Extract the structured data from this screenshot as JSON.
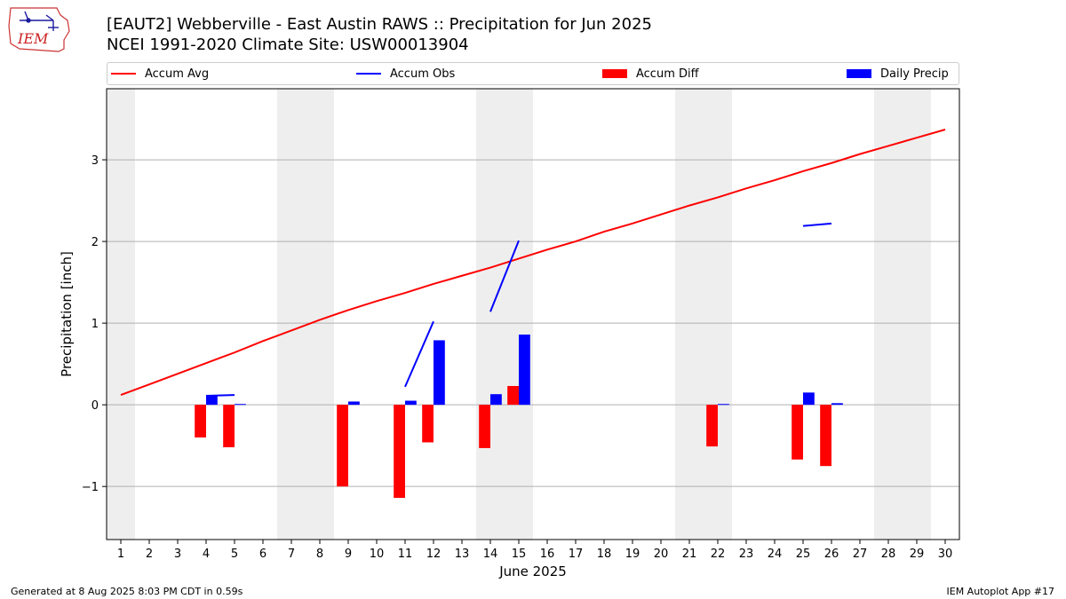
{
  "header": {
    "title_line1": "[EAUT2] Webberville - East Austin RAWS :: Precipitation for Jun 2025",
    "title_line2": "NCEI 1991-2020 Climate Site: USW00013904"
  },
  "logo": {
    "text": "IEM",
    "icon": "iowa-state-logo-icon"
  },
  "legend": [
    {
      "label": "Accum Avg",
      "kind": "line",
      "color": "#ff0000"
    },
    {
      "label": "Accum Obs",
      "kind": "line",
      "color": "#0000ff"
    },
    {
      "label": "Accum Diff",
      "kind": "bar",
      "color": "#ff0000"
    },
    {
      "label": "Daily Precip",
      "kind": "bar",
      "color": "#0000ff"
    }
  ],
  "footer": {
    "left": "Generated at 8 Aug 2025 8:03 PM CDT in 0.59s",
    "right": "IEM Autoplot App #17"
  },
  "colors": {
    "avg": "#ff0000",
    "obs": "#0000ff",
    "diff": "#ff0000",
    "daily": "#0000ff",
    "weekend": "#eeeeee",
    "grid": "#b0b0b0"
  },
  "chart_data": {
    "type": "bar",
    "xlabel": "June 2025",
    "ylabel": "Precipitation [inch]",
    "x": [
      1,
      2,
      3,
      4,
      5,
      6,
      7,
      8,
      9,
      10,
      11,
      12,
      13,
      14,
      15,
      16,
      17,
      18,
      19,
      20,
      21,
      22,
      23,
      24,
      25,
      26,
      27,
      28,
      29,
      30
    ],
    "xlim": [
      0.5,
      30.5
    ],
    "ylim": [
      -1.65,
      3.87
    ],
    "yticks": [
      -1,
      0,
      1,
      2,
      3
    ],
    "ytick_labels": [
      "−1",
      "0",
      "1",
      "2",
      "3"
    ],
    "grid": "y",
    "weekend_days": [
      1,
      7,
      8,
      14,
      15,
      21,
      22,
      28,
      29
    ],
    "legend_position": "top",
    "series": [
      {
        "name": "Accum Avg",
        "type": "line",
        "values": [
          0.12,
          0.25,
          0.38,
          0.51,
          0.64,
          0.78,
          0.91,
          1.04,
          1.16,
          1.27,
          1.37,
          1.48,
          1.58,
          1.68,
          1.79,
          1.9,
          2.0,
          2.12,
          2.22,
          2.33,
          2.44,
          2.54,
          2.65,
          2.75,
          2.86,
          2.96,
          3.07,
          3.17,
          3.27,
          3.37
        ]
      },
      {
        "name": "Accum Obs",
        "type": "line",
        "values": [
          null,
          null,
          null,
          0.11,
          0.12,
          null,
          null,
          null,
          null,
          null,
          0.22,
          1.02,
          null,
          1.14,
          2.01,
          null,
          null,
          null,
          null,
          null,
          null,
          null,
          null,
          null,
          2.19,
          2.22,
          null,
          null,
          null,
          null
        ]
      },
      {
        "name": "Accum Diff",
        "type": "bar",
        "values": [
          null,
          null,
          null,
          -0.4,
          -0.52,
          null,
          null,
          null,
          -1.0,
          null,
          -1.14,
          -0.46,
          null,
          -0.53,
          0.23,
          null,
          null,
          null,
          null,
          null,
          null,
          -0.51,
          null,
          null,
          -0.67,
          -0.75,
          null,
          null,
          null,
          null
        ]
      },
      {
        "name": "Daily Precip",
        "type": "bar",
        "values": [
          null,
          null,
          null,
          0.11,
          0.01,
          null,
          null,
          null,
          0.04,
          null,
          0.05,
          0.79,
          null,
          0.13,
          0.86,
          null,
          null,
          null,
          null,
          null,
          null,
          0.01,
          null,
          null,
          0.15,
          0.02,
          null,
          null,
          null,
          null
        ]
      }
    ]
  }
}
